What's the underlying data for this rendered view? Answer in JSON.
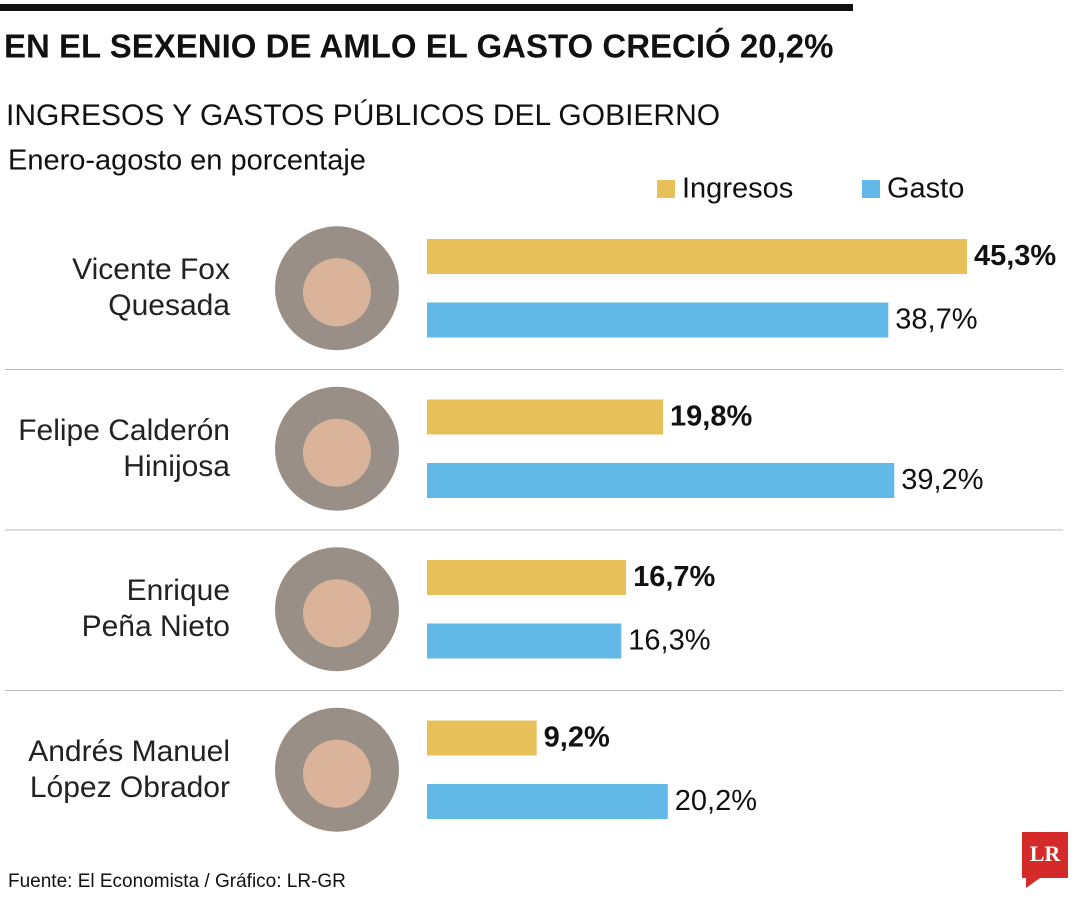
{
  "chart_data": {
    "type": "bar",
    "orientation": "horizontal",
    "title": "EN EL SEXENIO DE AMLO EL GASTO CRECIÓ 20,2%",
    "subtitle": "INGRESOS Y GASTOS PÚBLICOS DEL GOBIERNO",
    "unit_note": "Enero-agosto en porcentaje",
    "categories": [
      "Vicente Fox\nQuesada",
      "Felipe Calderón\nHinijosa",
      "Enrique\nPeña Nieto",
      "Andrés Manuel\nLópez Obrador"
    ],
    "series": [
      {
        "name": "Ingresos",
        "color": "#e8c05a",
        "label_weight": "bold",
        "values": [
          45.3,
          19.8,
          16.7,
          9.2
        ],
        "value_labels": [
          "45,3%",
          "19,8%",
          "16,7%",
          "9,2%"
        ]
      },
      {
        "name": "Gasto",
        "color": "#62b8e6",
        "label_weight": "normal",
        "values": [
          38.7,
          39.2,
          16.3,
          20.2
        ],
        "value_labels": [
          "38,7%",
          "39,2%",
          "16,3%",
          "20,2%"
        ]
      }
    ],
    "xlim": [
      0,
      50
    ],
    "source": "Fuente: El Economista / Gráfico: LR-GR",
    "logo": "LR"
  }
}
